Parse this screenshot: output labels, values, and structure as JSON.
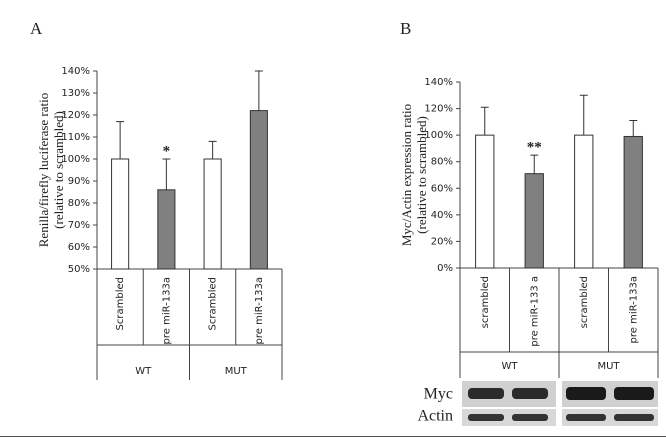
{
  "chart_data": [
    {
      "type": "bar",
      "panel": "A",
      "ylabel": [
        "Renilla/firefly luciferase ratio",
        "(relative to scrambled)"
      ],
      "categories": [
        "Scrambled",
        "pre miR-133a",
        "Scrambled",
        "pre miR-133a"
      ],
      "groups": [
        "WT",
        "MUT"
      ],
      "values": [
        100,
        86,
        100,
        122
      ],
      "errors": [
        17,
        14,
        8,
        18
      ],
      "colors": [
        "#ffffff",
        "#808080",
        "#ffffff",
        "#808080"
      ],
      "significance": [
        null,
        "*",
        null,
        null
      ],
      "ylim": [
        50,
        140
      ],
      "yticks": [
        {
          "value": 50,
          "label": "50%"
        },
        {
          "value": 60,
          "label": "60%"
        },
        {
          "value": 70,
          "label": "70%"
        },
        {
          "value": 80,
          "label": "80%"
        },
        {
          "value": 90,
          "label": "90%"
        },
        {
          "value": 100,
          "label": "100%"
        },
        {
          "value": 110,
          "label": "110%"
        },
        {
          "value": 120,
          "label": "120%"
        },
        {
          "value": 130,
          "label": "130%"
        },
        {
          "value": 140,
          "label": "140%"
        }
      ]
    },
    {
      "type": "bar",
      "panel": "B",
      "ylabel": [
        "Myc/Actin expression ratio",
        "(relative to scrambled)"
      ],
      "categories": [
        "scrambled",
        "pre miR-133 a",
        "scrambled",
        "pre miR-133a"
      ],
      "groups": [
        "WT",
        "MUT"
      ],
      "values": [
        100,
        71,
        100,
        99
      ],
      "errors": [
        21,
        14,
        30,
        12
      ],
      "colors": [
        "#ffffff",
        "#808080",
        "#ffffff",
        "#808080"
      ],
      "significance": [
        null,
        "**",
        null,
        null
      ],
      "ylim": [
        0,
        140
      ],
      "yticks": [
        {
          "value": 0,
          "label": "0%"
        },
        {
          "value": 20,
          "label": "20%"
        },
        {
          "value": 40,
          "label": "40%"
        },
        {
          "value": 60,
          "label": "60%"
        },
        {
          "value": 80,
          "label": "80%"
        },
        {
          "value": 100,
          "label": "100%"
        },
        {
          "value": 120,
          "label": "120%"
        },
        {
          "value": 140,
          "label": "140%"
        }
      ],
      "blot_labels": [
        "Myc",
        "Actin"
      ]
    }
  ]
}
